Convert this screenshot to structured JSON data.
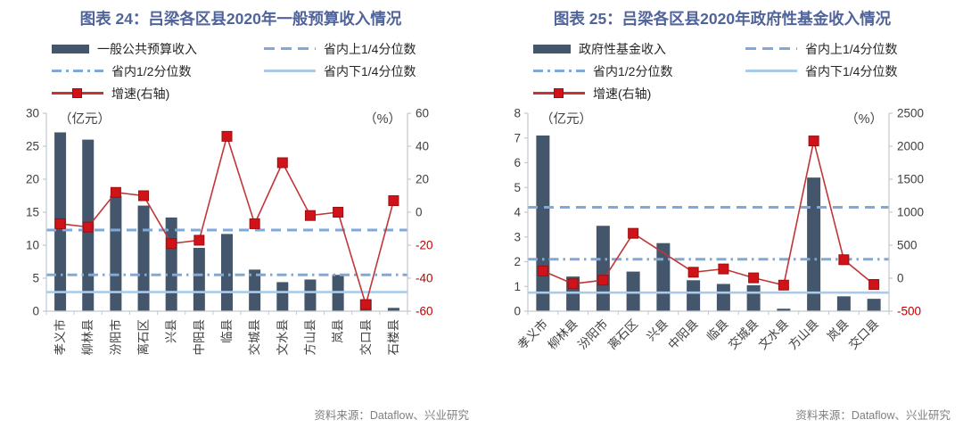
{
  "colors": {
    "title": "#50649a",
    "bar": "#44566b",
    "red_line": "#c23537",
    "red_marker": "#cf1318",
    "blue_dash": "#7fa9d9",
    "blue_solid": "#a9cbe9",
    "axis": "#c2c9d0",
    "tick_text": "#404040",
    "negative_tick_text": "#c00000",
    "source_text": "#7f7f7f"
  },
  "charts": [
    {
      "title": "图表 24：吕梁各区县2020年一般预算收入情况",
      "legend": {
        "bar": "一般公共预算收入",
        "upper": "省内上1/4分位数",
        "median": "省内1/2分位数",
        "lower": "省内下1/4分位数",
        "growth": "增速(右轴)"
      },
      "source": "资料来源：Dataflow、兴业研究"
    },
    {
      "title": "图表 25：吕梁各区县2020年政府性基金收入情况",
      "legend": {
        "bar": "政府性基金收入",
        "upper": "省内上1/4分位数",
        "median": "省内1/2分位数",
        "lower": "省内下1/4分位数",
        "growth": "增速(右轴)"
      },
      "source": "资料来源：Dataflow、兴业研究"
    }
  ],
  "chart_data": [
    {
      "type": "bar",
      "title": "图表 24：吕梁各区县2020年一般预算收入情况",
      "categories": [
        "孝义市",
        "柳林县",
        "汾阳市",
        "离石区",
        "兴县",
        "中阳县",
        "临县",
        "交城县",
        "文水县",
        "方山县",
        "岚县",
        "交口县",
        "石楼县"
      ],
      "series": [
        {
          "name": "一般公共预算收入",
          "type": "bar",
          "axis": "left",
          "values": [
            27.1,
            26.0,
            17.5,
            16.0,
            14.2,
            9.6,
            11.7,
            6.3,
            4.4,
            4.8,
            5.5,
            1.8,
            0.5
          ]
        },
        {
          "name": "增速(右轴)",
          "type": "line",
          "axis": "right",
          "values": [
            -7,
            -9,
            12,
            10,
            -19,
            -17,
            46,
            -7,
            30,
            -2,
            0,
            -56,
            7
          ]
        },
        {
          "name": "省内上1/4分位数",
          "type": "refline",
          "axis": "left",
          "style": "dashed",
          "value": 12.3
        },
        {
          "name": "省内1/2分位数",
          "type": "refline",
          "axis": "left",
          "style": "dashdot",
          "value": 5.5
        },
        {
          "name": "省内下1/4分位数",
          "type": "refline",
          "axis": "left",
          "style": "solid",
          "value": 2.9
        }
      ],
      "ylabel_left": "（亿元）",
      "ylabel_right": "（%）",
      "y_left": {
        "min": 0,
        "max": 30,
        "step": 5
      },
      "y_right": {
        "min": -60,
        "max": 60,
        "step": 20
      },
      "xlabel_rotation": -90,
      "grid": false,
      "legend_position": "top"
    },
    {
      "type": "bar",
      "title": "图表 25：吕梁各区县2020年政府性基金收入情况",
      "categories": [
        "孝义市",
        "柳林县",
        "汾阳市",
        "离石区",
        "兴县",
        "中阳县",
        "临县",
        "交城县",
        "文水县",
        "方山县",
        "岚县",
        "交口县"
      ],
      "series": [
        {
          "name": "政府性基金收入",
          "type": "bar",
          "axis": "left",
          "values": [
            7.1,
            1.4,
            3.45,
            1.6,
            2.75,
            1.25,
            1.1,
            1.05,
            0.1,
            5.4,
            0.6,
            0.5
          ]
        },
        {
          "name": "增速(右轴)",
          "type": "line",
          "axis": "right",
          "values": [
            110,
            -85,
            -30,
            680,
            null,
            90,
            140,
            5,
            -105,
            2080,
            280,
            -95
          ]
        },
        {
          "name": "省内上1/4分位数",
          "type": "refline",
          "axis": "left",
          "style": "dashed",
          "value": 4.2
        },
        {
          "name": "省内1/2分位数",
          "type": "refline",
          "axis": "left",
          "style": "dashdot",
          "value": 2.1
        },
        {
          "name": "省内下1/4分位数",
          "type": "refline",
          "axis": "left",
          "style": "solid",
          "value": 0.75
        }
      ],
      "ylabel_left": "（亿元）",
      "ylabel_right": "（%）",
      "y_left": {
        "min": 0,
        "max": 8,
        "step": 1
      },
      "y_right": {
        "min": -500,
        "max": 2500,
        "step": 500
      },
      "xlabel_rotation": -45,
      "grid": false,
      "legend_position": "top"
    }
  ]
}
